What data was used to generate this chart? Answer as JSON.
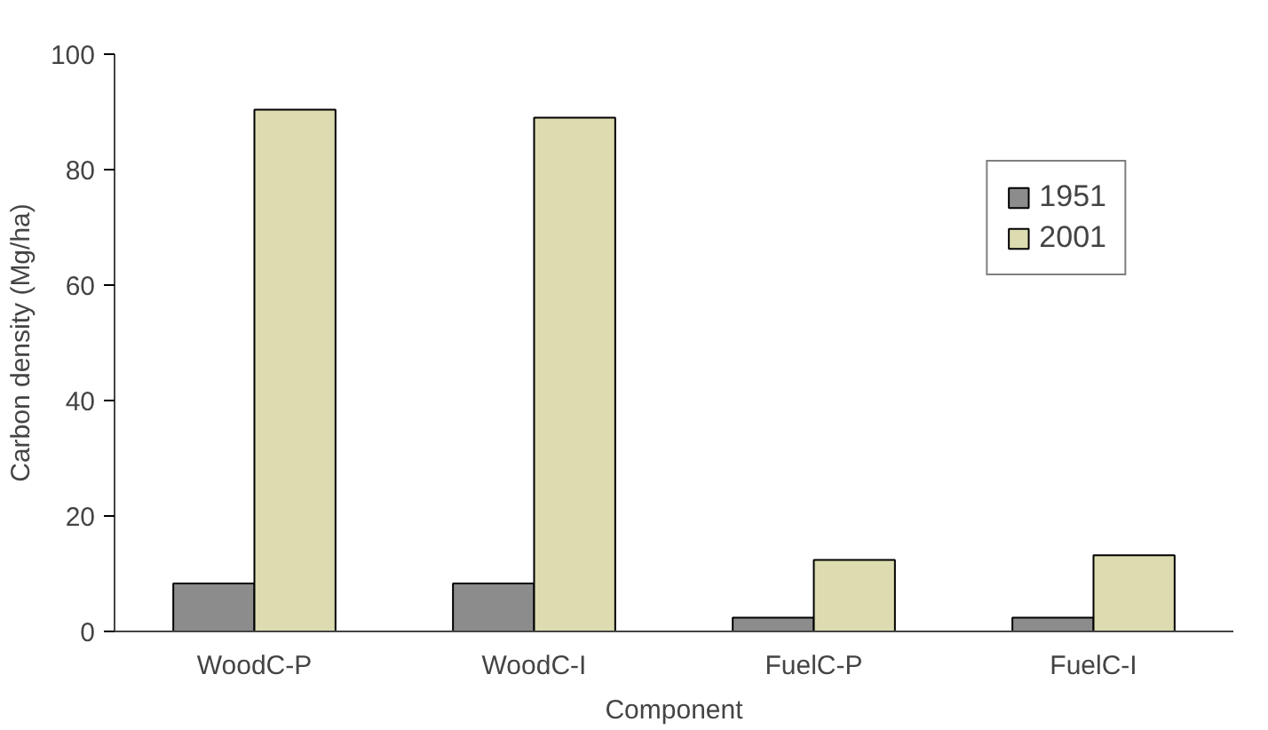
{
  "chart_data": {
    "type": "bar",
    "xlabel": "Component",
    "ylabel": "Carbon density (Mg/ha)",
    "categories": [
      "WoodC-P",
      "WoodC-I",
      "FuelC-P",
      "FuelC-I"
    ],
    "series": [
      {
        "name": "1951",
        "color": "#8c8c8c",
        "values": [
          8.3,
          8.3,
          2.4,
          2.4
        ]
      },
      {
        "name": "2001",
        "color": "#dcdcb0",
        "values": [
          90.4,
          89.0,
          12.4,
          13.2
        ]
      }
    ],
    "ylim": [
      0,
      100
    ],
    "yticks": [
      0,
      20,
      40,
      60,
      80,
      100
    ],
    "grid": false,
    "legend": "top right"
  }
}
